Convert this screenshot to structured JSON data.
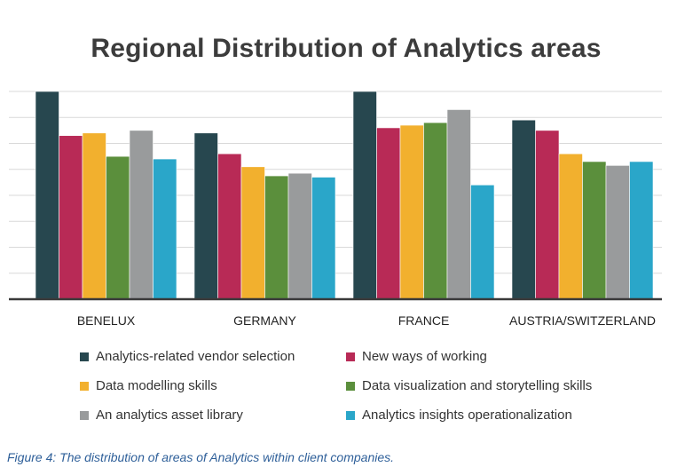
{
  "chart_data": {
    "type": "bar",
    "title": "Regional Distribution of Analytics areas",
    "categories": [
      "BENELUX",
      "GERMANY",
      "FRANCE",
      "AUSTRIA/SWITZERLAND"
    ],
    "series": [
      {
        "name": "Analytics-related vendor selection",
        "color": "#27474f",
        "values": [
          8.0,
          6.4,
          8.0,
          6.9
        ]
      },
      {
        "name": "New ways of working",
        "color": "#b82a56",
        "values": [
          6.3,
          5.6,
          6.6,
          6.5
        ]
      },
      {
        "name": "Data modelling skills",
        "color": "#f2b02e",
        "values": [
          6.4,
          5.1,
          6.7,
          5.6
        ]
      },
      {
        "name": "Data visualization and storytelling skills",
        "color": "#5b8f3c",
        "values": [
          5.5,
          4.75,
          6.8,
          5.3
        ]
      },
      {
        "name": "An analytics asset library",
        "color": "#999b9c",
        "values": [
          6.5,
          4.85,
          7.3,
          5.15
        ]
      },
      {
        "name": "Analytics insights operationalization",
        "color": "#2aa6c9",
        "values": [
          5.4,
          4.7,
          4.4,
          5.3
        ]
      }
    ],
    "ylim": [
      0,
      8
    ],
    "grid": true,
    "xlabel": "",
    "ylabel": "",
    "legend_position": "bottom"
  },
  "caption": "Figure 4: The distribution of areas of Analytics within client companies."
}
